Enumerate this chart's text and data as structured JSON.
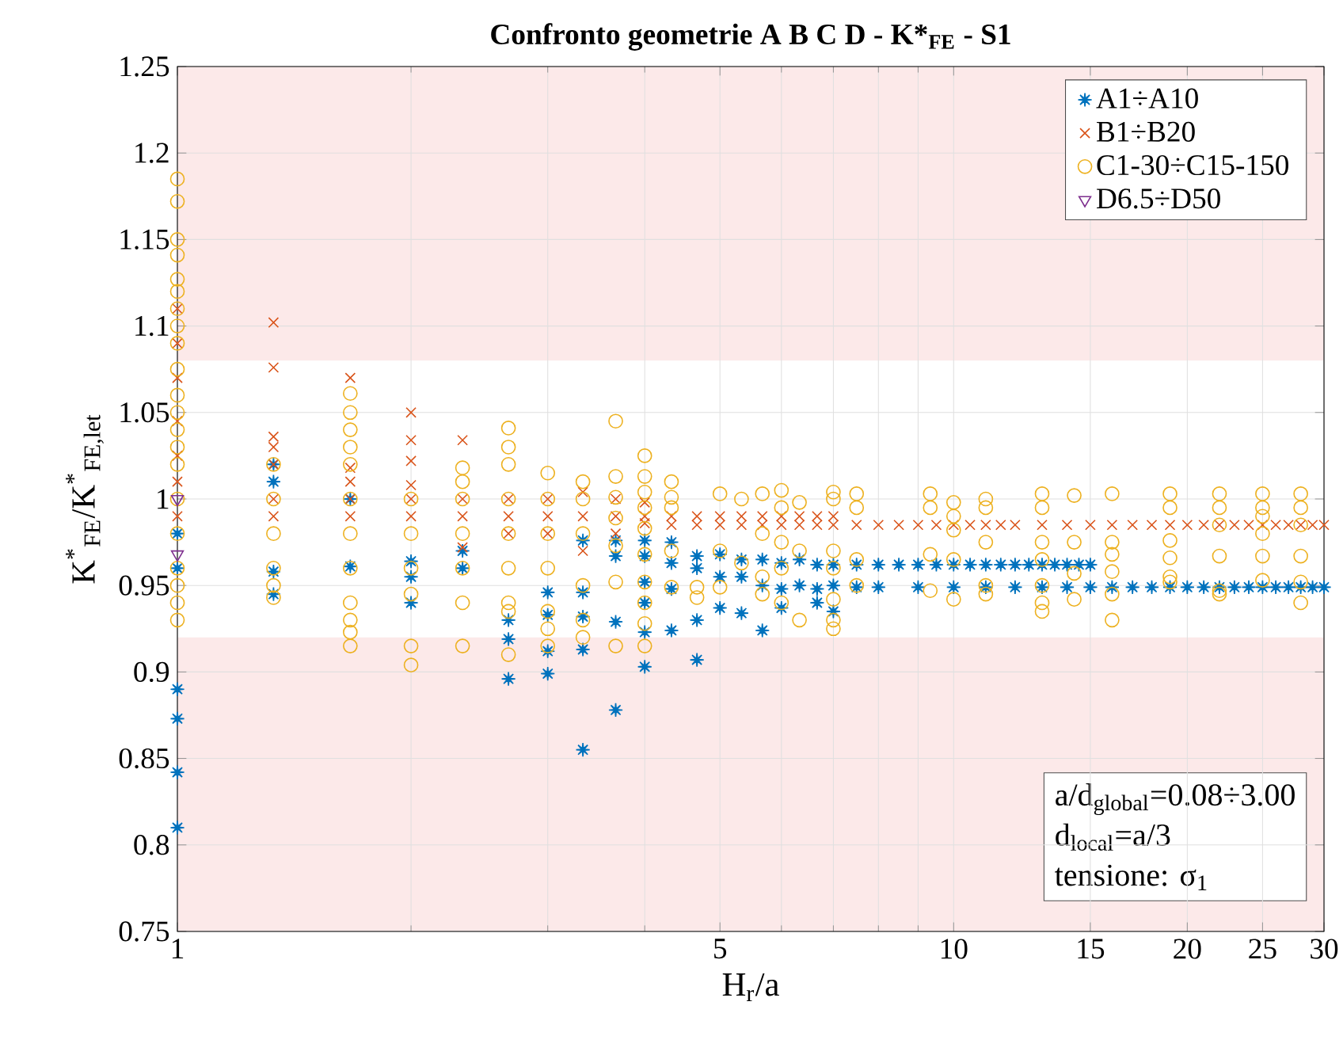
{
  "chart_data": {
    "type": "scatter",
    "title": "Confronto geometrie  A B C D - K*$_{FE}$ - S1",
    "xlabel": "H$_{r}$/a",
    "ylabel": "K$^{*}$$_{FE}$/K$^{*}$$_{FE,let}$",
    "log": "x",
    "grid": true,
    "legend": "top right",
    "xlim": [
      1,
      30
    ],
    "xticks": [
      1,
      5,
      10,
      15,
      20,
      25,
      30
    ],
    "ylim": [
      0.75,
      1.25
    ],
    "yticks": [
      0.75,
      0.8,
      0.85,
      0.9,
      0.95,
      1,
      1.05,
      1.1,
      1.15,
      1.2,
      1.25
    ],
    "bands": [
      {
        "axis": "y",
        "from": 0.75,
        "to": 0.92,
        "color": "#fce9e9"
      },
      {
        "axis": "y",
        "from": 1.08,
        "to": 1.25,
        "color": "#fce9e9"
      }
    ],
    "annotations": [
      "a/d$_{global}$=0.08÷3.00",
      "d$_{local}$=a/3",
      "tensione: σ$_{1}$"
    ],
    "series": [
      {
        "name": "A1÷A10",
        "color": "#0072bd",
        "marker": "star",
        "x": [
          1,
          1,
          1,
          1,
          1,
          1,
          1.33,
          1.33,
          1.33,
          1.33,
          1.67,
          1.67,
          2,
          2,
          2,
          2.33,
          2.33,
          2.67,
          2.67,
          2.67,
          3,
          3,
          3,
          3,
          3.33,
          3.33,
          3.33,
          3.33,
          3.33,
          3.67,
          3.67,
          3.67,
          3.67,
          4,
          4,
          4,
          4,
          4,
          4,
          4.33,
          4.33,
          4.33,
          4.33,
          4.67,
          4.67,
          4.67,
          4.67,
          5,
          5,
          5,
          5.33,
          5.33,
          5.33,
          5.67,
          5.67,
          5.67,
          6,
          6,
          6,
          6.33,
          6.33,
          6.67,
          6.67,
          6.67,
          7,
          7,
          7,
          7.5,
          8,
          8.5,
          9,
          9.5,
          10,
          10.5,
          11,
          11.5,
          12,
          12.5,
          13,
          13.5,
          14,
          14.5,
          15,
          7.5,
          8,
          9,
          10,
          11,
          12,
          13,
          14,
          15,
          16,
          17,
          18,
          19,
          20,
          21,
          22,
          23,
          24,
          25,
          26,
          27,
          28,
          29,
          30
        ],
        "values": [
          0.89,
          0.873,
          0.842,
          0.81,
          0.96,
          0.98,
          1.02,
          1.01,
          0.958,
          0.945,
          0.961,
          1.0,
          0.964,
          0.955,
          0.94,
          0.97,
          0.96,
          0.93,
          0.919,
          0.896,
          0.946,
          0.933,
          0.912,
          0.899,
          0.976,
          0.946,
          0.932,
          0.913,
          0.855,
          0.976,
          0.967,
          0.929,
          0.878,
          0.976,
          0.967,
          0.952,
          0.94,
          0.923,
          0.903,
          0.975,
          0.963,
          0.948,
          0.924,
          0.967,
          0.96,
          0.93,
          0.907,
          0.968,
          0.955,
          0.937,
          0.965,
          0.955,
          0.934,
          0.965,
          0.95,
          0.924,
          0.963,
          0.948,
          0.937,
          0.965,
          0.95,
          0.962,
          0.948,
          0.94,
          0.962,
          0.95,
          0.935,
          0.962,
          0.962,
          0.962,
          0.962,
          0.962,
          0.962,
          0.962,
          0.962,
          0.962,
          0.962,
          0.962,
          0.962,
          0.962,
          0.962,
          0.962,
          0.962,
          0.949,
          0.949,
          0.949,
          0.949,
          0.949,
          0.949,
          0.949,
          0.949,
          0.949,
          0.949,
          0.949,
          0.949,
          0.949,
          0.949,
          0.949,
          0.949,
          0.949,
          0.949,
          0.949,
          0.949,
          0.949,
          0.949,
          0.949,
          0.949
        ]
      },
      {
        "name": "B1÷B20",
        "color": "#d95319",
        "marker": "cross",
        "x": [
          1,
          1,
          1,
          1,
          1,
          1,
          1,
          1.33,
          1.33,
          1.33,
          1.33,
          1.33,
          1.33,
          1.33,
          1.67,
          1.67,
          1.67,
          1.67,
          1.67,
          2,
          2,
          2,
          2,
          2,
          2,
          2.33,
          2.33,
          2.33,
          2.33,
          2.67,
          2.67,
          2.67,
          3,
          3,
          3,
          3.33,
          3.33,
          3.33,
          3.67,
          3.67,
          3.67,
          4,
          4,
          4,
          4.33,
          4.33,
          4.67,
          4.67,
          5,
          5,
          5.33,
          5.33,
          5.67,
          5.67,
          6,
          6,
          6.33,
          6.33,
          6.67,
          6.67,
          7,
          7,
          7.5,
          8,
          8.5,
          9,
          9.5,
          10,
          10.5,
          11,
          11.5,
          12,
          13,
          14,
          15,
          16,
          17,
          18,
          19,
          20,
          21,
          22,
          23,
          24,
          25,
          26,
          27,
          28,
          29,
          30
        ],
        "values": [
          1.11,
          1.09,
          1.07,
          1.045,
          1.025,
          1.01,
          0.99,
          1.102,
          1.076,
          1.036,
          1.03,
          1.02,
          1.0,
          0.99,
          1.07,
          1.018,
          1.01,
          1.0,
          0.99,
          1.05,
          1.034,
          1.022,
          1.008,
          1.0,
          0.99,
          1.034,
          1.0,
          0.99,
          0.972,
          1.0,
          0.99,
          0.98,
          1.0,
          0.99,
          0.98,
          1.004,
          0.99,
          0.97,
          1.0,
          0.99,
          0.98,
          0.998,
          0.99,
          0.986,
          0.99,
          0.985,
          0.99,
          0.985,
          0.99,
          0.985,
          0.99,
          0.985,
          0.99,
          0.985,
          0.99,
          0.985,
          0.99,
          0.985,
          0.99,
          0.985,
          0.99,
          0.985,
          0.985,
          0.985,
          0.985,
          0.985,
          0.985,
          0.985,
          0.985,
          0.985,
          0.985,
          0.985,
          0.985,
          0.985,
          0.985,
          0.985,
          0.985,
          0.985,
          0.985,
          0.985,
          0.985,
          0.985,
          0.985,
          0.985,
          0.985,
          0.985,
          0.985,
          0.985,
          0.985,
          0.985
        ]
      },
      {
        "name": "C1-30÷C15-150",
        "color": "#edb120",
        "marker": "circle",
        "x": [
          1,
          1,
          1,
          1,
          1,
          1,
          1,
          1,
          1,
          1,
          1,
          1,
          1,
          1,
          1,
          1,
          1,
          1,
          1,
          1,
          1,
          1.33,
          1.33,
          1.33,
          1.33,
          1.33,
          1.33,
          1.67,
          1.67,
          1.67,
          1.67,
          1.67,
          1.67,
          1.67,
          1.67,
          1.67,
          1.67,
          1.67,
          1.67,
          2,
          2,
          2,
          2,
          2,
          2,
          2.33,
          2.33,
          2.33,
          2.33,
          2.33,
          2.33,
          2.33,
          2.67,
          2.67,
          2.67,
          2.67,
          2.67,
          2.67,
          2.67,
          2.67,
          2.67,
          3,
          3,
          3,
          3,
          3,
          3,
          3,
          3.33,
          3.33,
          3.33,
          3.33,
          3.33,
          3.33,
          3.67,
          3.67,
          3.67,
          3.67,
          3.67,
          3.67,
          3.67,
          4,
          4,
          4,
          4,
          4,
          4,
          4,
          4,
          4,
          4,
          4.33,
          4.33,
          4.33,
          4.33,
          4.33,
          4.67,
          4.67,
          5,
          5,
          5,
          5.33,
          5.33,
          5.67,
          5.67,
          5.67,
          5.67,
          6,
          6,
          6,
          6,
          6,
          6.33,
          6.33,
          6.33,
          7,
          7,
          7,
          7,
          7,
          7,
          7,
          7.5,
          7.5,
          7.5,
          7.5,
          9.33,
          9.33,
          9.33,
          9.33,
          10,
          10,
          10,
          10,
          10,
          11,
          11,
          11,
          11,
          11,
          13,
          13,
          13,
          13,
          13,
          13,
          13,
          14.3,
          14.3,
          14.3,
          14.3,
          16,
          16,
          16,
          16,
          16,
          16,
          19,
          19,
          19,
          19,
          19,
          19,
          22,
          22,
          22,
          22,
          22,
          22,
          25,
          25,
          25,
          25,
          25,
          25,
          28,
          28,
          28,
          28,
          28,
          28
        ],
        "values": [
          1.185,
          1.172,
          1.15,
          1.141,
          1.127,
          1.12,
          1.11,
          1.1,
          1.09,
          1.075,
          1.06,
          1.05,
          1.04,
          1.03,
          1.02,
          1.0,
          0.98,
          0.96,
          0.95,
          0.94,
          0.93,
          1.02,
          1.0,
          0.98,
          0.96,
          0.95,
          0.943,
          1.061,
          1.05,
          1.04,
          1.03,
          1.02,
          1.0,
          0.98,
          0.96,
          0.94,
          0.93,
          0.923,
          0.915,
          1.0,
          0.98,
          0.96,
          0.945,
          0.915,
          0.904,
          1.018,
          1.01,
          1.0,
          0.98,
          0.96,
          0.94,
          0.915,
          1.041,
          1.03,
          1.02,
          1.0,
          0.98,
          0.96,
          0.94,
          0.935,
          0.91,
          1.015,
          1.0,
          0.98,
          0.96,
          0.935,
          0.925,
          0.915,
          1.01,
          1.0,
          0.98,
          0.95,
          0.93,
          0.92,
          1.045,
          1.013,
          1.001,
          0.989,
          0.973,
          0.952,
          0.915,
          1.025,
          1.013,
          1.004,
          0.995,
          0.983,
          0.968,
          0.952,
          0.94,
          0.928,
          0.915,
          1.01,
          1.001,
          0.995,
          0.97,
          0.949,
          0.949,
          0.943,
          1.003,
          0.97,
          0.949,
          1.0,
          0.963,
          1.003,
          0.98,
          0.955,
          0.945,
          1.005,
          0.995,
          0.975,
          0.96,
          0.94,
          0.998,
          0.97,
          0.93,
          1.004,
          1.0,
          0.97,
          0.96,
          0.942,
          0.93,
          0.925,
          1.003,
          0.995,
          0.965,
          0.95,
          1.003,
          0.995,
          0.968,
          0.947,
          0.998,
          0.99,
          0.982,
          0.965,
          0.942,
          1.0,
          0.995,
          0.975,
          0.95,
          0.945,
          1.003,
          0.995,
          0.975,
          0.965,
          0.95,
          0.94,
          0.935,
          1.002,
          0.975,
          0.957,
          0.942,
          1.003,
          0.975,
          0.968,
          0.958,
          0.945,
          0.93,
          1.003,
          0.995,
          0.976,
          0.966,
          0.955,
          0.952,
          1.003,
          0.995,
          0.985,
          0.967,
          0.947,
          0.945,
          1.003,
          0.995,
          0.99,
          0.98,
          0.967,
          0.953,
          1.003,
          0.995,
          0.985,
          0.967,
          0.952,
          0.94
        ]
      },
      {
        "name": "D6.5÷D50",
        "color": "#7e2f8e",
        "marker": "triangle",
        "x": [
          1,
          1
        ],
        "values": [
          1.0,
          0.968
        ]
      }
    ]
  }
}
